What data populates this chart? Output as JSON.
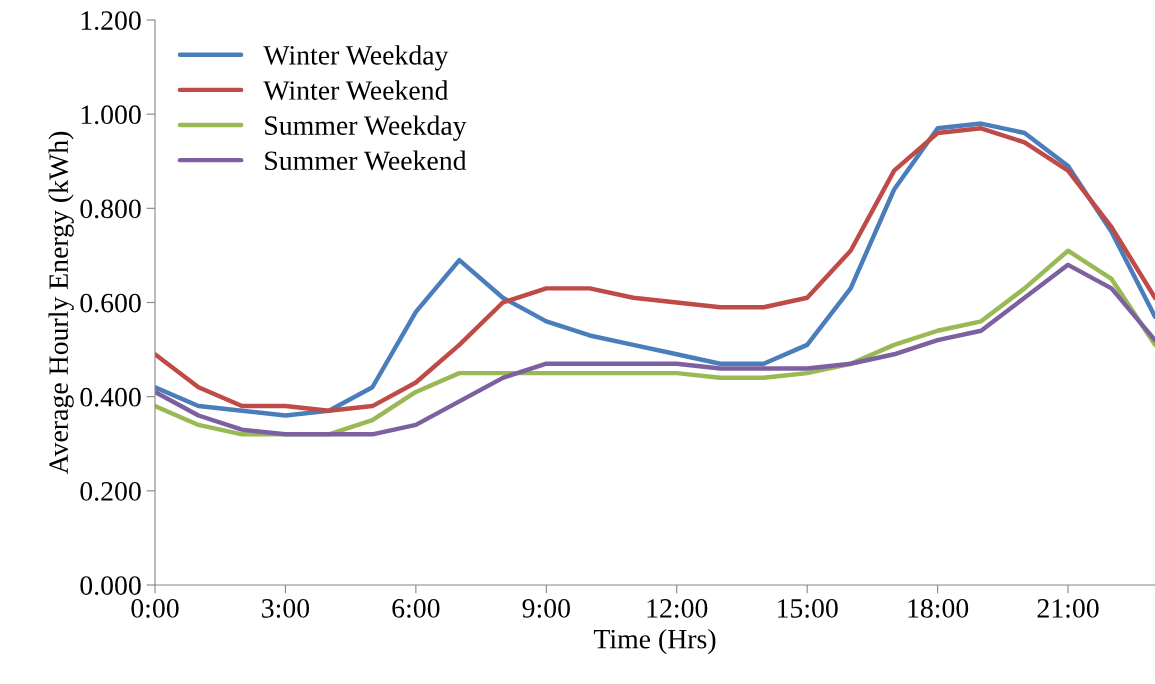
{
  "chart_data": {
    "type": "line",
    "xlabel": "Time (Hrs)",
    "ylabel": "Average Hourly Energy (kWh)",
    "x": [
      0,
      1,
      2,
      3,
      4,
      5,
      6,
      7,
      8,
      9,
      10,
      11,
      12,
      13,
      14,
      15,
      16,
      17,
      18,
      19,
      20,
      21,
      22,
      23
    ],
    "series": [
      {
        "name": "Winter Weekday",
        "color": "#4a7ebb",
        "values": [
          0.42,
          0.38,
          0.37,
          0.36,
          0.37,
          0.42,
          0.58,
          0.69,
          0.61,
          0.56,
          0.53,
          0.51,
          0.49,
          0.47,
          0.47,
          0.51,
          0.63,
          0.84,
          0.97,
          0.98,
          0.96,
          0.89,
          0.75,
          0.57
        ]
      },
      {
        "name": "Winter Weekend",
        "color": "#be4b48",
        "values": [
          0.49,
          0.42,
          0.38,
          0.38,
          0.37,
          0.38,
          0.43,
          0.51,
          0.6,
          0.63,
          0.63,
          0.61,
          0.6,
          0.59,
          0.59,
          0.61,
          0.71,
          0.88,
          0.96,
          0.97,
          0.94,
          0.88,
          0.76,
          0.61
        ]
      },
      {
        "name": "Summer Weekday",
        "color": "#98b954",
        "values": [
          0.38,
          0.34,
          0.32,
          0.32,
          0.32,
          0.35,
          0.41,
          0.45,
          0.45,
          0.45,
          0.45,
          0.45,
          0.45,
          0.44,
          0.44,
          0.45,
          0.47,
          0.51,
          0.54,
          0.56,
          0.63,
          0.71,
          0.65,
          0.51
        ]
      },
      {
        "name": "Summer Weekend",
        "color": "#7d60a0",
        "values": [
          0.41,
          0.36,
          0.33,
          0.32,
          0.32,
          0.32,
          0.34,
          0.39,
          0.44,
          0.47,
          0.47,
          0.47,
          0.47,
          0.46,
          0.46,
          0.46,
          0.47,
          0.49,
          0.52,
          0.54,
          0.61,
          0.68,
          0.63,
          0.52
        ]
      }
    ],
    "xlim": [
      0,
      23
    ],
    "xticks": [
      {
        "value": 0,
        "label": "0:00"
      },
      {
        "value": 3,
        "label": "3:00"
      },
      {
        "value": 6,
        "label": "6:00"
      },
      {
        "value": 9,
        "label": "9:00"
      },
      {
        "value": 12,
        "label": "12:00"
      },
      {
        "value": 15,
        "label": "15:00"
      },
      {
        "value": 18,
        "label": "18:00"
      },
      {
        "value": 21,
        "label": "21:00"
      }
    ],
    "ylim": [
      0,
      1.2
    ],
    "yticks": [
      {
        "value": 0,
        "label": "0.000"
      },
      {
        "value": 0.2,
        "label": "0.200"
      },
      {
        "value": 0.4,
        "label": "0.400"
      },
      {
        "value": 0.6,
        "label": "0.600"
      },
      {
        "value": 0.8,
        "label": "0.800"
      },
      {
        "value": 1.0,
        "label": "1.000"
      },
      {
        "value": 1.2,
        "label": "1.200"
      }
    ],
    "grid": false,
    "legend": "top left",
    "marker": "none",
    "line_style": "solid"
  }
}
